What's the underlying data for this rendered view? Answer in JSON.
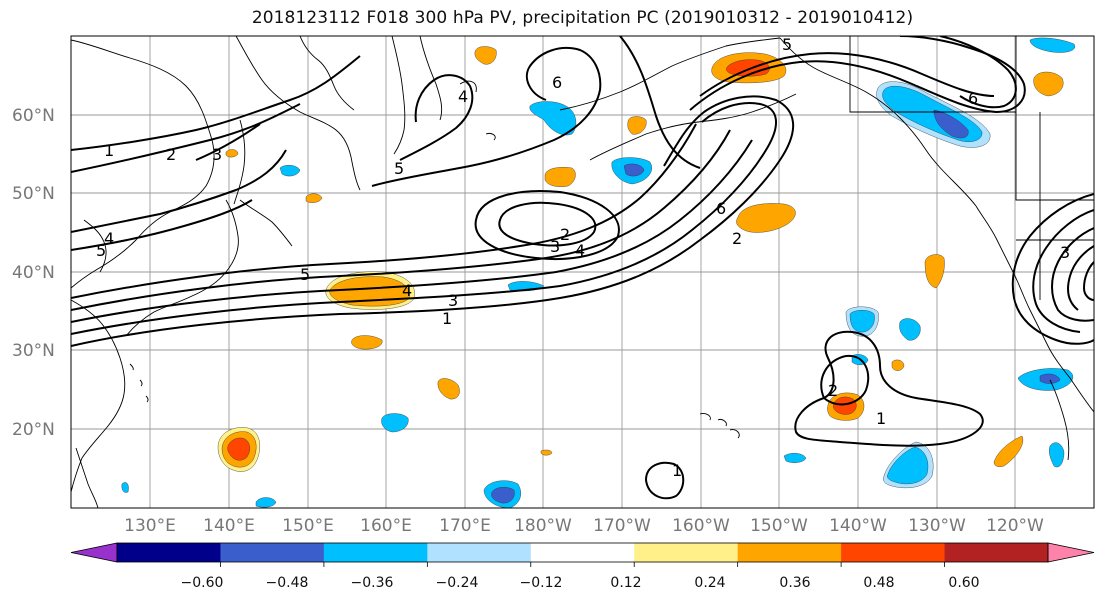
{
  "title": "2018123112 F018 300 hPa PV, precipitation PC (2019010312 - 2019010412)",
  "lat_labels": [
    "60°N",
    "50°N",
    "40°N",
    "30°N",
    "20°N"
  ],
  "lon_labels": [
    "130°E",
    "140°E",
    "150°E",
    "160°E",
    "170°E",
    "180°W",
    "170°W",
    "160°W",
    "150°W",
    "140°W",
    "130°W",
    "120°W"
  ],
  "colorbar": {
    "ticks": [
      "−0.60",
      "−0.48",
      "−0.36",
      "−0.24",
      "−0.12",
      "0.12",
      "0.24",
      "0.36",
      "0.48",
      "0.60"
    ],
    "colors": [
      "#9932cc",
      "#00008b",
      "#3a5fcd",
      "#00bfff",
      "#b0e2ff",
      "#ffffff",
      "#fff08a",
      "#ffa500",
      "#ff4500",
      "#b22222",
      "#ff82ab"
    ]
  },
  "contour_labels": [
    {
      "text": "1"
    },
    {
      "text": "2"
    },
    {
      "text": "3"
    },
    {
      "text": "4"
    },
    {
      "text": "5"
    },
    {
      "text": "5"
    },
    {
      "text": "4"
    },
    {
      "text": "3"
    },
    {
      "text": "1"
    },
    {
      "text": "2"
    },
    {
      "text": "3"
    },
    {
      "text": "4"
    },
    {
      "text": "5"
    },
    {
      "text": "6"
    },
    {
      "text": "4"
    },
    {
      "text": "6"
    },
    {
      "text": "5"
    },
    {
      "text": "6"
    },
    {
      "text": "2"
    },
    {
      "text": "1"
    },
    {
      "text": "1"
    },
    {
      "text": "2"
    },
    {
      "text": "3"
    }
  ]
}
